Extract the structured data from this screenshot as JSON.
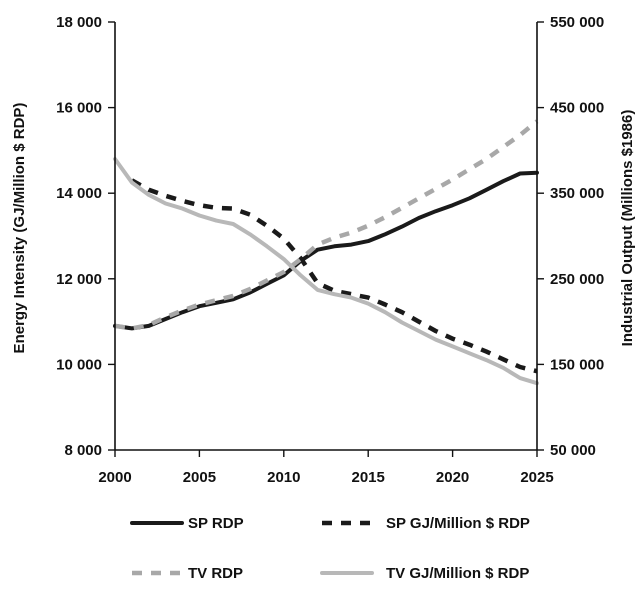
{
  "chart_data": {
    "type": "line",
    "xlabel": "",
    "ylabel_left": "Energy Intensity (GJ/Million $ RDP)",
    "ylabel_right": "Industrial Output (Millions $1986)",
    "x_ticks": [
      "2000",
      "2005",
      "2010",
      "2015",
      "2020",
      "2025"
    ],
    "y_left_ticks": [
      "8 000",
      "10 000",
      "12 000",
      "14 000",
      "16 000",
      "18 000"
    ],
    "y_right_ticks": [
      "50 000",
      "150 000",
      "250 000",
      "350 000",
      "450 000",
      "550 000"
    ],
    "xlim": [
      2000,
      2025
    ],
    "ylim_left": [
      8000,
      18000
    ],
    "ylim_right": [
      50000,
      550000
    ],
    "grid": false,
    "legend_position": "bottom",
    "series": [
      {
        "name": "SP RDP",
        "axis": "right",
        "color": "#1a1a1a",
        "style": "solid",
        "points": [
          [
            2000,
            195000
          ],
          [
            2001,
            192000
          ],
          [
            2002,
            195000
          ],
          [
            2003,
            203000
          ],
          [
            2004,
            211000
          ],
          [
            2005,
            218000
          ],
          [
            2006,
            222000
          ],
          [
            2007,
            226000
          ],
          [
            2008,
            234000
          ],
          [
            2009,
            244000
          ],
          [
            2010,
            254000
          ],
          [
            2011,
            271000
          ],
          [
            2012,
            284000
          ],
          [
            2013,
            288000
          ],
          [
            2014,
            290000
          ],
          [
            2015,
            294000
          ],
          [
            2016,
            302000
          ],
          [
            2017,
            311000
          ],
          [
            2018,
            321000
          ],
          [
            2019,
            329000
          ],
          [
            2020,
            336000
          ],
          [
            2021,
            344000
          ],
          [
            2022,
            354000
          ],
          [
            2023,
            364000
          ],
          [
            2024,
            373000
          ],
          [
            2025,
            374000
          ]
        ]
      },
      {
        "name": "SP GJ/Million $ RDP",
        "axis": "left",
        "color": "#1a1a1a",
        "style": "dashed",
        "points": [
          [
            2001,
            14300
          ],
          [
            2002,
            14080
          ],
          [
            2003,
            13940
          ],
          [
            2004,
            13820
          ],
          [
            2005,
            13720
          ],
          [
            2006,
            13660
          ],
          [
            2007,
            13640
          ],
          [
            2008,
            13500
          ],
          [
            2009,
            13240
          ],
          [
            2010,
            12940
          ],
          [
            2011,
            12480
          ],
          [
            2012,
            11900
          ],
          [
            2013,
            11720
          ],
          [
            2014,
            11640
          ],
          [
            2015,
            11560
          ],
          [
            2016,
            11400
          ],
          [
            2017,
            11220
          ],
          [
            2018,
            11000
          ],
          [
            2019,
            10780
          ],
          [
            2020,
            10600
          ],
          [
            2021,
            10460
          ],
          [
            2022,
            10300
          ],
          [
            2023,
            10120
          ],
          [
            2024,
            9940
          ],
          [
            2025,
            9840
          ]
        ]
      },
      {
        "name": "TV RDP",
        "axis": "right",
        "color": "#a8a8a8",
        "style": "dashed",
        "points": [
          [
            2000,
            195000
          ],
          [
            2001,
            192000
          ],
          [
            2002,
            196000
          ],
          [
            2003,
            205000
          ],
          [
            2004,
            213000
          ],
          [
            2005,
            220000
          ],
          [
            2006,
            225000
          ],
          [
            2007,
            230000
          ],
          [
            2008,
            238000
          ],
          [
            2009,
            248000
          ],
          [
            2010,
            258000
          ],
          [
            2011,
            273000
          ],
          [
            2012,
            290000
          ],
          [
            2013,
            298000
          ],
          [
            2014,
            304000
          ],
          [
            2015,
            312000
          ],
          [
            2016,
            322000
          ],
          [
            2017,
            333000
          ],
          [
            2018,
            344000
          ],
          [
            2019,
            355000
          ],
          [
            2020,
            366000
          ],
          [
            2021,
            378000
          ],
          [
            2022,
            390000
          ],
          [
            2023,
            404000
          ],
          [
            2024,
            418000
          ],
          [
            2025,
            434000
          ]
        ]
      },
      {
        "name": "TV GJ/Million $ RDP",
        "axis": "left",
        "color": "#b8b8b8",
        "style": "solid",
        "points": [
          [
            2000,
            14800
          ],
          [
            2001,
            14250
          ],
          [
            2002,
            13960
          ],
          [
            2003,
            13760
          ],
          [
            2004,
            13640
          ],
          [
            2005,
            13480
          ],
          [
            2006,
            13360
          ],
          [
            2007,
            13280
          ],
          [
            2008,
            13040
          ],
          [
            2009,
            12760
          ],
          [
            2010,
            12460
          ],
          [
            2011,
            12080
          ],
          [
            2012,
            11740
          ],
          [
            2013,
            11640
          ],
          [
            2014,
            11560
          ],
          [
            2015,
            11420
          ],
          [
            2016,
            11220
          ],
          [
            2017,
            10980
          ],
          [
            2018,
            10780
          ],
          [
            2019,
            10580
          ],
          [
            2020,
            10420
          ],
          [
            2021,
            10260
          ],
          [
            2022,
            10100
          ],
          [
            2023,
            9920
          ],
          [
            2024,
            9680
          ],
          [
            2025,
            9560
          ]
        ]
      }
    ]
  }
}
